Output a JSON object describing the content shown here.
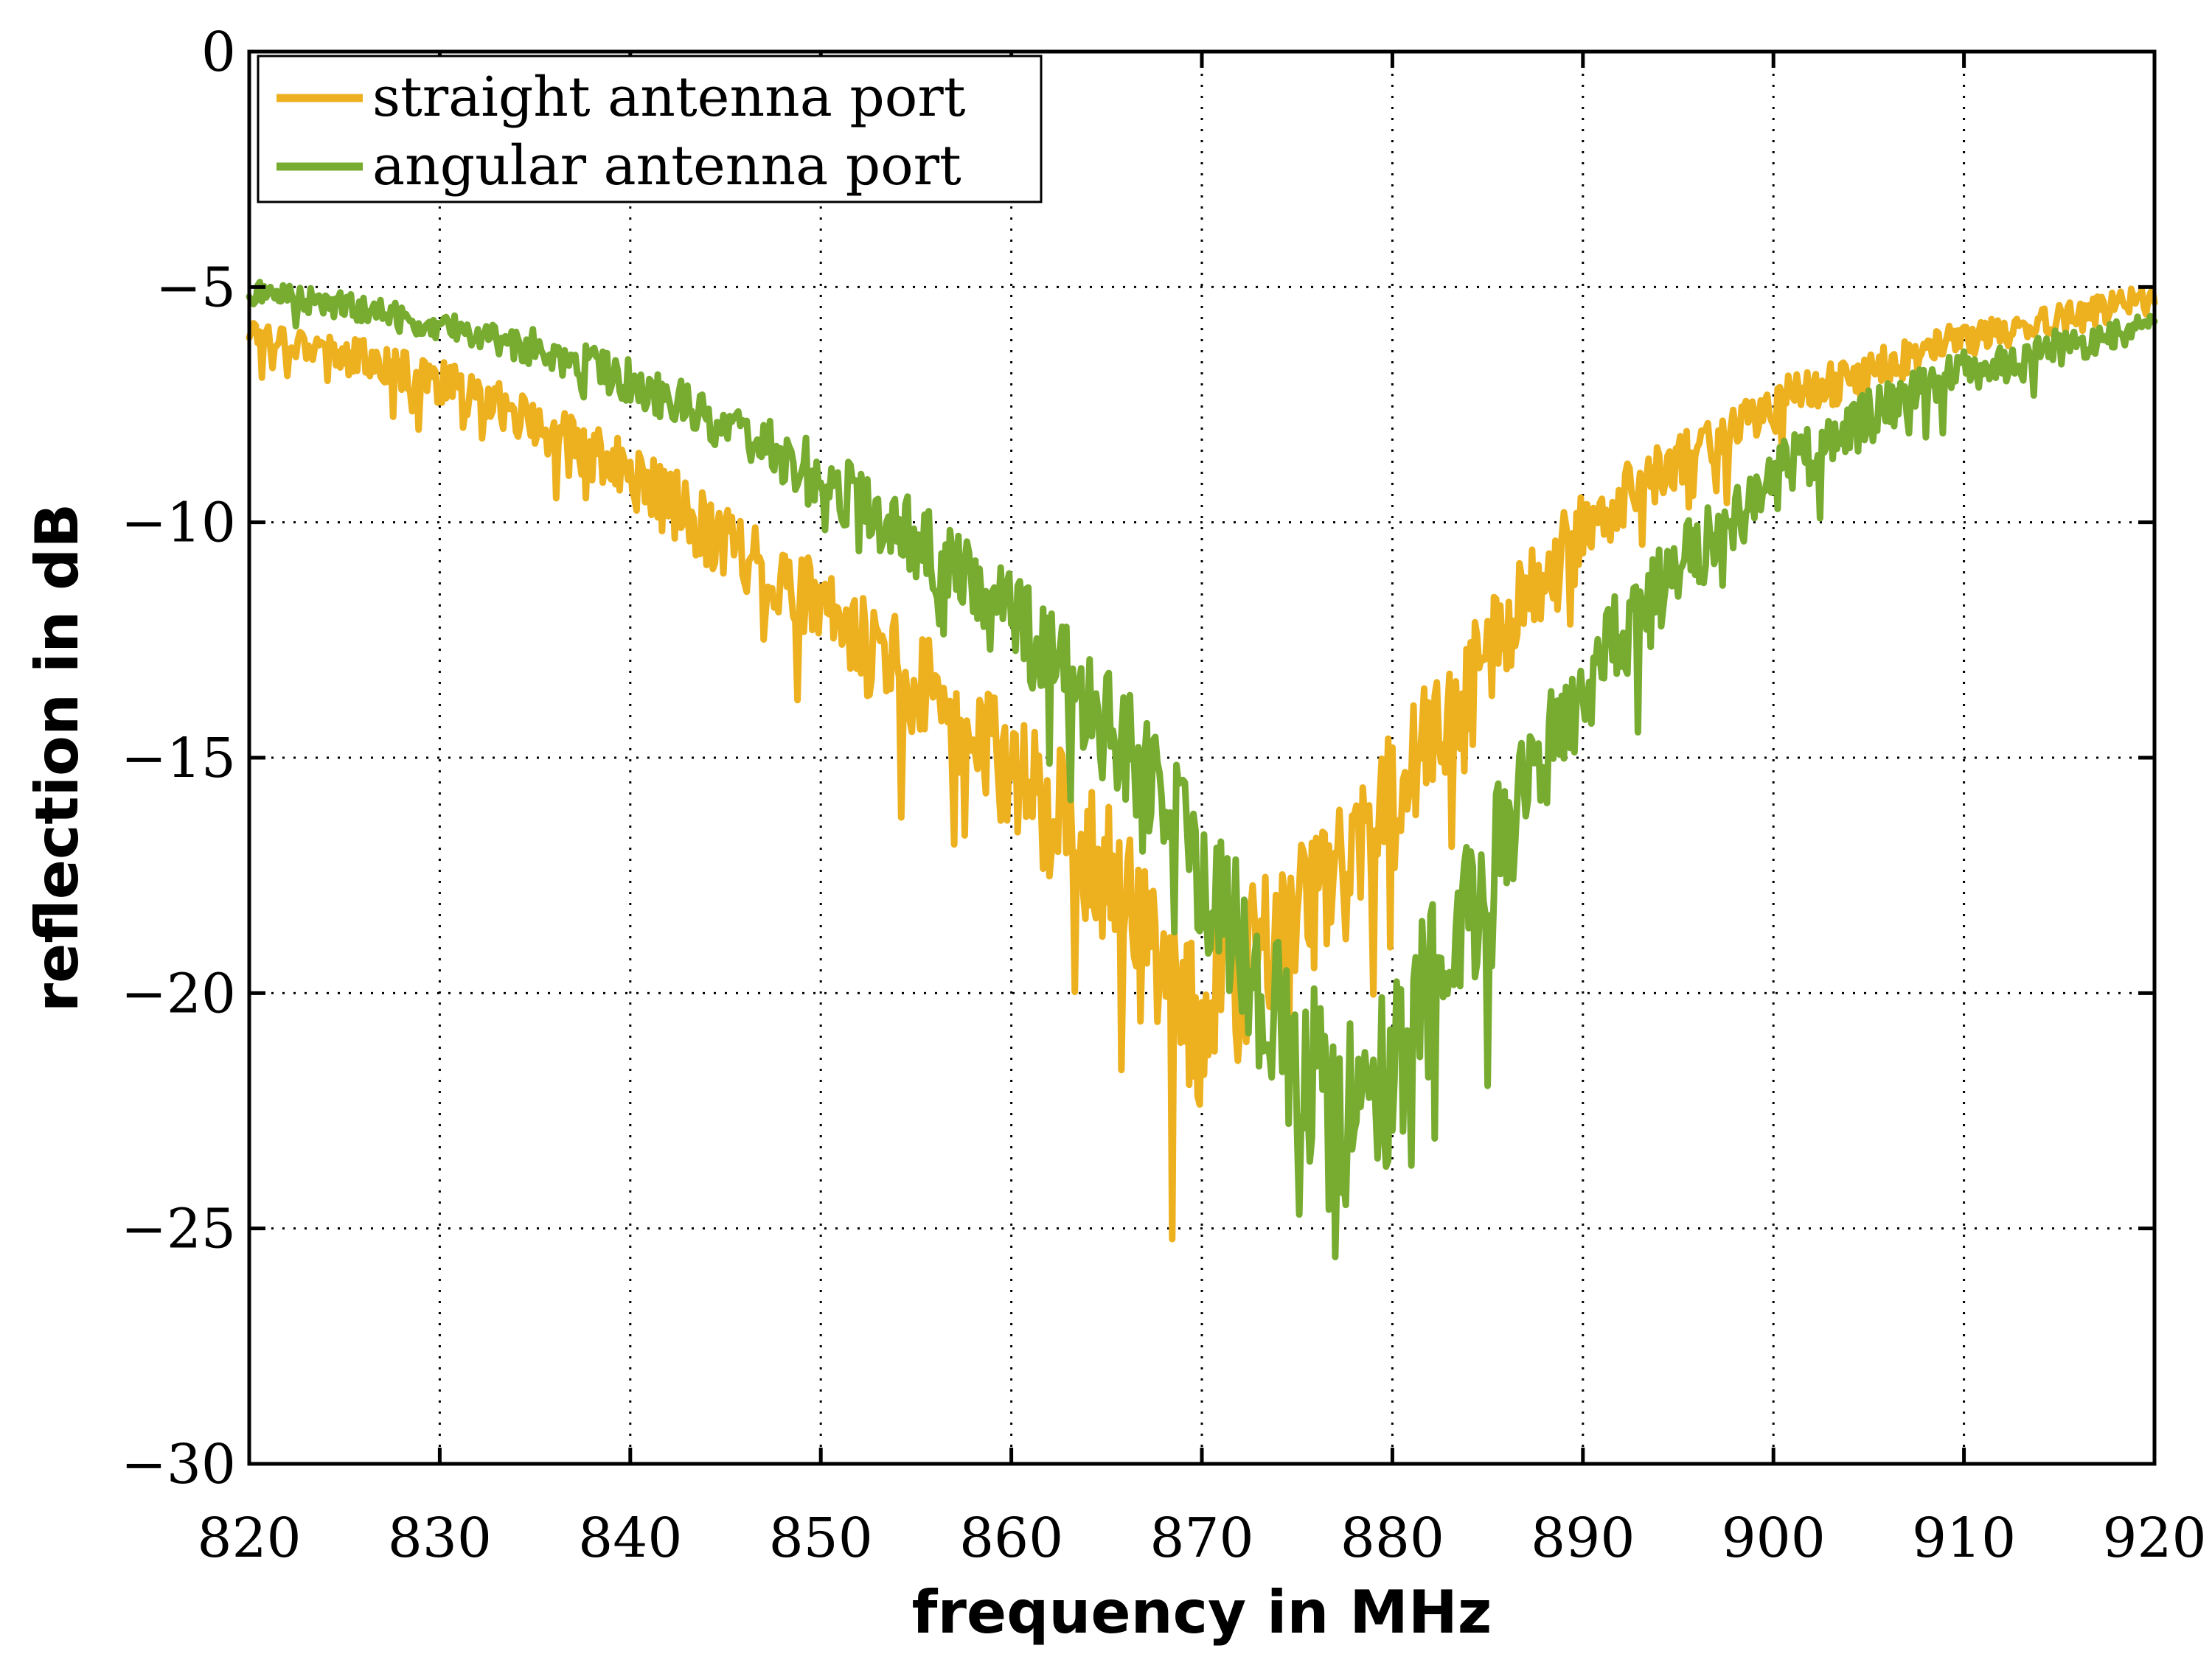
{
  "chart_data": {
    "type": "line",
    "title": "",
    "xlabel": "frequency in MHz",
    "ylabel": "reflection in dB",
    "xlim": [
      820,
      920
    ],
    "ylim": [
      -30,
      0
    ],
    "xticks": [
      820,
      830,
      840,
      850,
      860,
      870,
      880,
      890,
      900,
      910,
      920
    ],
    "xtick_labels": [
      "820",
      "830",
      "840",
      "850",
      "860",
      "870",
      "880",
      "890",
      "900",
      "910",
      "920"
    ],
    "yticks": [
      0,
      -5,
      -10,
      -15,
      -20,
      -25,
      -30
    ],
    "ytick_labels": [
      "0",
      "−5",
      "−10",
      "−15",
      "−20",
      "−25",
      "−30"
    ],
    "grid": true,
    "legend_position": "top-left",
    "series": [
      {
        "name": "straight antenna port",
        "color": "#EDB120",
        "x": [
          820,
          825,
          830,
          835,
          840,
          845,
          850,
          855,
          860,
          863,
          866,
          868,
          870,
          872,
          874,
          876,
          878,
          880,
          883,
          886,
          890,
          895,
          900,
          905,
          910,
          915,
          920
        ],
        "values": [
          -5.9,
          -6.4,
          -7.0,
          -7.9,
          -9.0,
          -10.4,
          -11.9,
          -13.4,
          -15.2,
          -16.5,
          -18.0,
          -19.5,
          -20.5,
          -19.6,
          -18.8,
          -18.0,
          -17.2,
          -15.8,
          -14.0,
          -12.2,
          -10.1,
          -8.6,
          -7.5,
          -6.8,
          -6.1,
          -5.7,
          -5.2
        ]
      },
      {
        "name": "angular antenna port",
        "color": "#77AC30",
        "x": [
          820,
          825,
          830,
          835,
          840,
          845,
          850,
          855,
          860,
          863,
          866,
          868,
          870,
          872,
          874,
          876,
          878,
          880,
          882,
          884,
          886,
          888,
          890,
          895,
          900,
          905,
          910,
          915,
          920
        ],
        "values": [
          -5.1,
          -5.4,
          -5.8,
          -6.3,
          -7.0,
          -7.9,
          -9.0,
          -10.4,
          -12.0,
          -13.3,
          -14.8,
          -16.0,
          -17.3,
          -18.8,
          -20.6,
          -22.0,
          -22.6,
          -21.5,
          -20.0,
          -18.4,
          -16.7,
          -15.0,
          -13.4,
          -11.0,
          -9.1,
          -7.7,
          -6.8,
          -6.3,
          -5.8
        ]
      }
    ]
  }
}
